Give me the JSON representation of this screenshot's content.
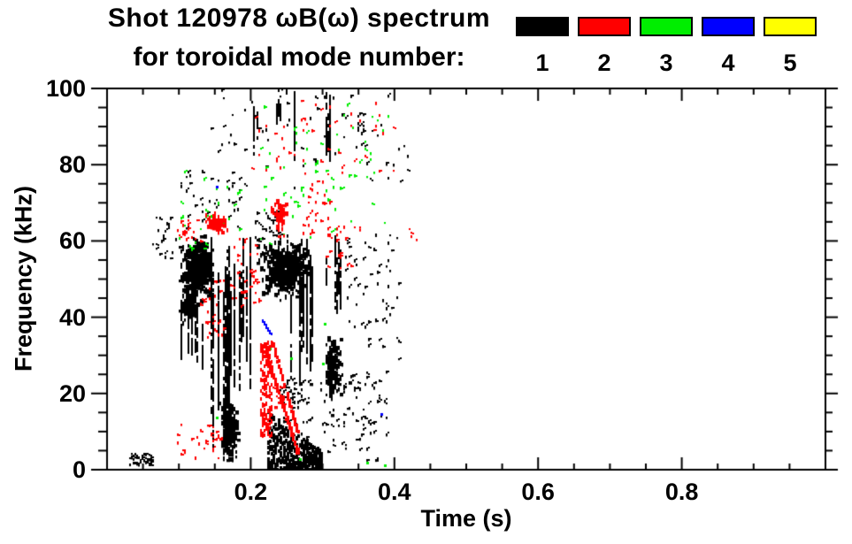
{
  "colors": {
    "background": "#ffffff",
    "axis": "#000000"
  },
  "chart_data": {
    "type": "scatter",
    "title_line1": "Shot 120978 ωB(ω) spectrum",
    "title_line2": "for toroidal mode number:",
    "shot": "120978",
    "xlabel": "Time (s)",
    "ylabel": "Frequency (kHz)",
    "xlim": [
      0,
      1
    ],
    "ylim": [
      0,
      100
    ],
    "grid": false,
    "x_major_ticks": [
      0.2,
      0.4,
      0.6,
      0.8
    ],
    "x_major_labels": [
      "0.2",
      "0.4",
      "0.6",
      "0.8"
    ],
    "x_minor_step": 0.05,
    "y_major_ticks": [
      0,
      20,
      40,
      60,
      80,
      100
    ],
    "y_major_labels": [
      "0",
      "20",
      "40",
      "60",
      "80",
      "100"
    ],
    "y_minor_step": 5,
    "legend": {
      "position": "top-right",
      "entries": [
        {
          "label": "1",
          "color": "#000000"
        },
        {
          "label": "2",
          "color": "#ff0000"
        },
        {
          "label": "3",
          "color": "#00ee00"
        },
        {
          "label": "4",
          "color": "#0000ff"
        },
        {
          "label": "5",
          "color": "#ffff00"
        }
      ]
    },
    "series": [
      {
        "name": "n=1",
        "color": "#000000",
        "clusters": [
          {
            "shape": "scatter",
            "t": [
              0.03,
              0.063
            ],
            "f": [
              1.5,
              4.5
            ],
            "count": 40
          },
          {
            "shape": "scatter",
            "t": [
              0.062,
              0.096
            ],
            "f": [
              55,
              67
            ],
            "count": 22
          },
          {
            "shape": "blob",
            "t": [
              0.096,
              0.152
            ],
            "f": [
              44,
              63
            ],
            "count": 600
          },
          {
            "shape": "blob",
            "t": [
              0.098,
              0.128
            ],
            "f": [
              38,
              49
            ],
            "count": 130
          },
          {
            "shape": "vstreaks",
            "t": [
              0.1,
              0.135
            ],
            "f": [
              26,
              44
            ],
            "lines": 7
          },
          {
            "shape": "vstreaks",
            "t": [
              0.144,
              0.178
            ],
            "f": [
              4,
              63
            ],
            "lines": 11
          },
          {
            "shape": "vstreaks",
            "t": [
              0.18,
              0.21
            ],
            "f": [
              20,
              62
            ],
            "lines": 6
          },
          {
            "shape": "blob",
            "t": [
              0.154,
              0.184
            ],
            "f": [
              1.5,
              20
            ],
            "count": 300
          },
          {
            "shape": "scatter",
            "t": [
              0.1,
              0.19
            ],
            "f": [
              63,
              80
            ],
            "count": 40
          },
          {
            "shape": "blob",
            "t": [
              0.203,
              0.29
            ],
            "f": [
              44,
              63
            ],
            "count": 550
          },
          {
            "shape": "scatter",
            "t": [
              0.205,
              0.24
            ],
            "f": [
              60,
              68
            ],
            "count": 30
          },
          {
            "shape": "vstreaks",
            "t": [
              0.24,
              0.3
            ],
            "f": [
              22,
              62
            ],
            "lines": 11
          },
          {
            "shape": "wedge",
            "t": [
              0.222,
              0.298
            ],
            "f0": 0.5,
            "top0": 16,
            "top1": 5,
            "count": 450
          },
          {
            "shape": "scatter",
            "t": [
              0.238,
              0.285
            ],
            "f": [
              8,
              24
            ],
            "count": 60
          },
          {
            "shape": "blob",
            "t": [
              0.298,
              0.328
            ],
            "f": [
              17,
              38
            ],
            "count": 180
          },
          {
            "shape": "vstreaks",
            "t": [
              0.3,
              0.33
            ],
            "f": [
              40,
              62
            ],
            "lines": 5
          },
          {
            "shape": "scatter",
            "t": [
              0.295,
              0.39
            ],
            "f": [
              2,
              26
            ],
            "count": 90
          },
          {
            "shape": "scatter",
            "t": [
              0.33,
              0.405
            ],
            "f": [
              28,
              62
            ],
            "count": 55
          },
          {
            "shape": "scatter",
            "t": [
              0.14,
              0.42
            ],
            "f": [
              74,
              100
            ],
            "count": 60
          },
          {
            "shape": "vstreaks",
            "t": [
              0.23,
              0.242
            ],
            "f": [
              88,
              100
            ],
            "lines": 3
          },
          {
            "shape": "vstreaks",
            "t": [
              0.296,
              0.318
            ],
            "f": [
              80,
              100
            ],
            "lines": 4
          },
          {
            "shape": "vstreaks",
            "t": [
              0.258,
              0.266
            ],
            "f": [
              75,
              100
            ],
            "lines": 2
          },
          {
            "shape": "vstreaks",
            "t": [
              0.2,
              0.214
            ],
            "f": [
              80,
              96
            ],
            "lines": 3
          },
          {
            "shape": "scatter",
            "t": [
              0.345,
              0.36
            ],
            "f": [
              84,
              97
            ],
            "count": 12
          }
        ]
      },
      {
        "name": "n=2",
        "color": "#ff0000",
        "clusters": [
          {
            "shape": "scatter",
            "t": [
              0.096,
              0.13
            ],
            "f": [
              60,
              66
            ],
            "count": 20
          },
          {
            "shape": "blob",
            "t": [
              0.134,
              0.168
            ],
            "f": [
              62,
              68
            ],
            "count": 100
          },
          {
            "shape": "scatter",
            "t": [
              0.128,
              0.162
            ],
            "f": [
              35,
              52
            ],
            "count": 28
          },
          {
            "shape": "scatter",
            "t": [
              0.168,
              0.212
            ],
            "f": [
              43,
              61
            ],
            "count": 40
          },
          {
            "shape": "scatter",
            "t": [
              0.095,
              0.16
            ],
            "f": [
              3,
              12
            ],
            "count": 28
          },
          {
            "shape": "band",
            "t": [
              0.213,
              0.228
            ],
            "f": [
              9,
              34
            ],
            "count": 170
          },
          {
            "shape": "chirp",
            "t": [
              0.22,
              0.264
            ],
            "fstart": 31,
            "fend": 5,
            "jitter": 1.2,
            "count": 130
          },
          {
            "shape": "chirp",
            "t": [
              0.228,
              0.266
            ],
            "fstart": 34,
            "fend": 9,
            "jitter": 0.8,
            "count": 60
          },
          {
            "shape": "blob",
            "t": [
              0.225,
              0.252
            ],
            "f": [
              61,
              73
            ],
            "count": 65
          },
          {
            "shape": "scatter",
            "t": [
              0.268,
              0.31
            ],
            "f": [
              62,
              78
            ],
            "count": 32
          },
          {
            "shape": "scatter",
            "t": [
              0.19,
              0.4
            ],
            "f": [
              78,
              97
            ],
            "count": 45
          },
          {
            "shape": "scatter",
            "t": [
              0.298,
              0.352
            ],
            "f": [
              53,
              66
            ],
            "count": 20
          },
          {
            "shape": "scatter",
            "t": [
              0.23,
              0.246
            ],
            "f": [
              16,
              22
            ],
            "count": 12
          },
          {
            "shape": "scatter",
            "t": [
              0.418,
              0.432
            ],
            "f": [
              60,
              64
            ],
            "count": 5
          }
        ]
      },
      {
        "name": "n=3",
        "color": "#00ee00",
        "clusters": [
          {
            "shape": "scatter",
            "t": [
              0.1,
              0.185
            ],
            "f": [
              56,
              80
            ],
            "count": 26
          },
          {
            "shape": "scatter",
            "t": [
              0.2,
              0.31
            ],
            "f": [
              58,
              96
            ],
            "count": 38
          },
          {
            "shape": "scatter",
            "t": [
              0.31,
              0.4
            ],
            "f": [
              60,
              96
            ],
            "count": 28
          },
          {
            "shape": "points",
            "pts": [
              [
                0.152,
                14
              ],
              [
                0.225,
                32
              ],
              [
                0.255,
                29.5
              ],
              [
                0.268,
                3
              ],
              [
                0.3,
                28
              ],
              [
                0.302,
                38.5
              ],
              [
                0.36,
                2
              ],
              [
                0.385,
                1.5
              ]
            ]
          }
        ]
      },
      {
        "name": "n=4",
        "color": "#0000ff",
        "clusters": [
          {
            "shape": "line",
            "p0": [
              0.2155,
              39.5
            ],
            "p1": [
              0.227,
              36
            ],
            "count": 16
          },
          {
            "shape": "points",
            "pts": [
              [
                0.151,
                74.5
              ],
              [
                0.38,
                14.8
              ]
            ]
          }
        ]
      },
      {
        "name": "n=5",
        "color": "#ffff00",
        "clusters": []
      }
    ]
  }
}
